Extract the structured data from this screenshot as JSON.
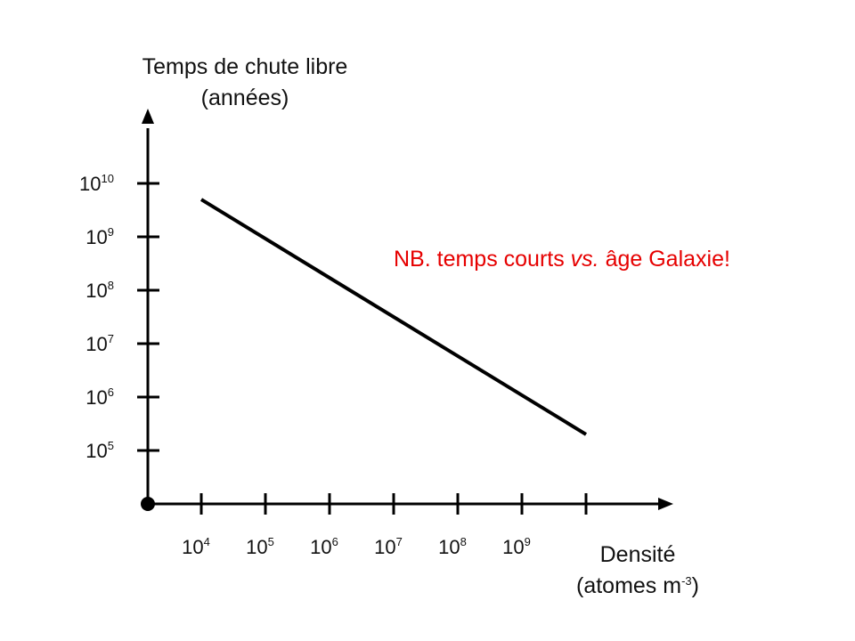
{
  "chart_data": {
    "type": "line",
    "title": "",
    "xlabel": [
      "Densité",
      "(atomes m",
      "-3",
      ")"
    ],
    "ylabel": [
      "Temps de chute libre",
      "(années)"
    ],
    "x_scale": "log",
    "y_scale": "log",
    "x_ticks": [
      {
        "base": "10",
        "exp": "4",
        "value": 10000
      },
      {
        "base": "10",
        "exp": "5",
        "value": 100000
      },
      {
        "base": "10",
        "exp": "6",
        "value": 1000000
      },
      {
        "base": "10",
        "exp": "7",
        "value": 10000000
      },
      {
        "base": "10",
        "exp": "8",
        "value": 100000000
      },
      {
        "base": "10",
        "exp": "9",
        "value": 1000000000
      }
    ],
    "y_ticks": [
      {
        "base": "10",
        "exp": "5",
        "value": 100000
      },
      {
        "base": "10",
        "exp": "6",
        "value": 1000000
      },
      {
        "base": "10",
        "exp": "7",
        "value": 10000000
      },
      {
        "base": "10",
        "exp": "8",
        "value": 100000000
      },
      {
        "base": "10",
        "exp": "9",
        "value": 1000000000
      },
      {
        "base": "10",
        "exp": "10",
        "value": 10000000000
      }
    ],
    "series": [
      {
        "x": [
          10000,
          10000000000
        ],
        "y": [
          5000000000,
          200000
        ],
        "color": "#000000"
      }
    ],
    "annotation": {
      "prefix": "NB. temps courts ",
      "italic": "vs.",
      "suffix": " âge Galaxie!",
      "color": "#e60000"
    },
    "grid": false,
    "legend": false
  }
}
